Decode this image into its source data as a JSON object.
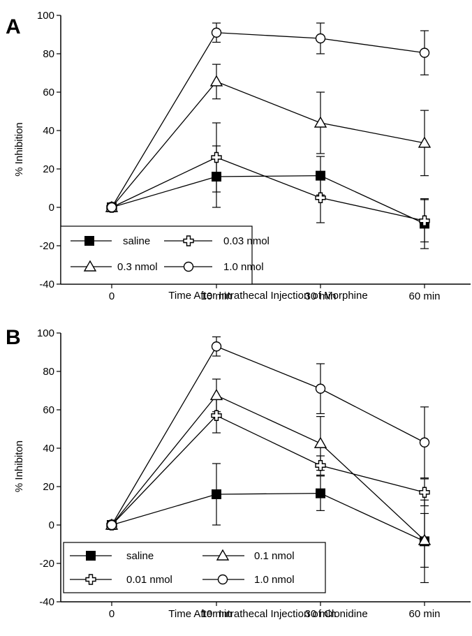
{
  "chart_data": [
    {
      "type": "line",
      "panel_label": "A",
      "xlabel": "Time After Intrathecal Injection of Morphine",
      "ylabel": "% Inhibition",
      "categories": [
        "0",
        "10 min",
        "30 min",
        "60 min"
      ],
      "ylim": [
        -40,
        100
      ],
      "yticks": [
        -40,
        -20,
        0,
        20,
        40,
        60,
        80,
        100
      ],
      "grid": false,
      "legend_position": "bottom-left",
      "series": [
        {
          "name": "saline",
          "marker": "filled-square",
          "values": [
            0,
            16,
            16.5,
            -8.5
          ],
          "errors": [
            0,
            16,
            10,
            13
          ]
        },
        {
          "name": "0.03 nmol",
          "marker": "open-cross",
          "values": [
            0,
            26,
            5,
            -7
          ],
          "errors": [
            0,
            18,
            13,
            11
          ]
        },
        {
          "name": "0.3 nmol",
          "marker": "open-triangle",
          "values": [
            0,
            65.5,
            44,
            33.5
          ],
          "errors": [
            0,
            9,
            16,
            17
          ]
        },
        {
          "name": "1.0 nmol",
          "marker": "open-circle",
          "values": [
            0,
            91,
            88,
            80.5
          ],
          "errors": [
            0,
            5,
            8,
            11.5
          ]
        }
      ]
    },
    {
      "type": "line",
      "panel_label": "B",
      "xlabel": "Time After Intrathecal Injection of Clonidine",
      "ylabel": "% Inhibiton",
      "categories": [
        "0",
        "10 min",
        "30 min",
        "60 min"
      ],
      "ylim": [
        -40,
        100
      ],
      "yticks": [
        -40,
        -20,
        0,
        20,
        40,
        60,
        80,
        100
      ],
      "grid": false,
      "legend_position": "bottom-left",
      "series": [
        {
          "name": "saline",
          "marker": "filled-square",
          "values": [
            0,
            16,
            16.5,
            -8.5
          ],
          "errors": [
            0,
            16,
            9,
            21.5
          ]
        },
        {
          "name": "0.1 nmol",
          "marker": "open-triangle",
          "values": [
            0,
            67.5,
            42.5,
            -8
          ],
          "errors": [
            0,
            8.5,
            14,
            14
          ]
        },
        {
          "name": "0.01 nmol",
          "marker": "open-cross",
          "values": [
            0,
            57,
            31,
            17
          ],
          "errors": [
            0,
            9,
            5,
            7
          ]
        },
        {
          "name": "1.0 nmol",
          "marker": "open-circle",
          "values": [
            0,
            93,
            71,
            43
          ],
          "errors": [
            0,
            5,
            13,
            18.5
          ]
        }
      ]
    }
  ]
}
